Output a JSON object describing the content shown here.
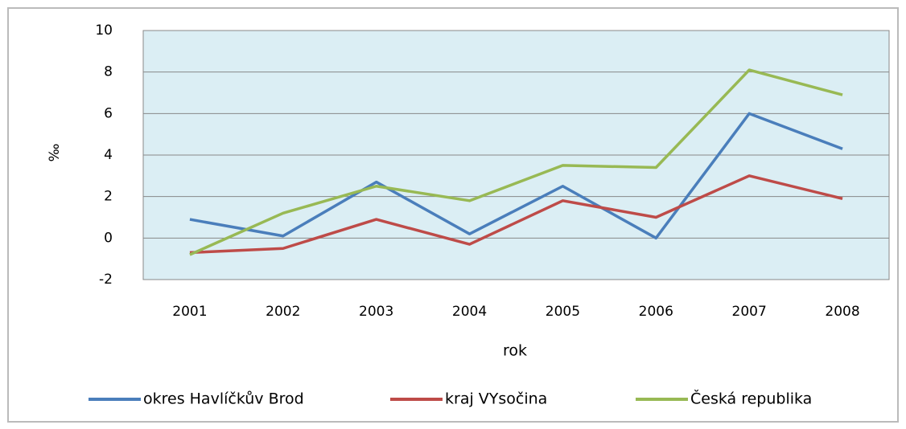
{
  "chart_data": {
    "type": "line",
    "x_label": "rok",
    "y_label": "‰",
    "categories": [
      "2001",
      "2002",
      "2003",
      "2004",
      "2005",
      "2006",
      "2007",
      "2008"
    ],
    "series": [
      {
        "name": "okres Havlíčkův Brod",
        "color": "#4a7ebb",
        "values": [
          0.9,
          0.1,
          2.7,
          0.2,
          2.5,
          0.0,
          6.0,
          4.3
        ]
      },
      {
        "name": "kraj VYsočina",
        "color": "#be4b48",
        "values": [
          -0.7,
          -0.5,
          0.9,
          -0.3,
          1.8,
          1.0,
          3.0,
          1.9
        ]
      },
      {
        "name": "Česká republika",
        "color": "#98b954",
        "values": [
          -0.8,
          1.2,
          2.5,
          1.8,
          3.5,
          3.4,
          8.1,
          6.9
        ]
      }
    ],
    "ylim": [
      -2,
      10
    ],
    "yticks": [
      -2,
      0,
      2,
      4,
      6,
      8,
      10
    ],
    "grid": true,
    "legend": "bottom"
  }
}
